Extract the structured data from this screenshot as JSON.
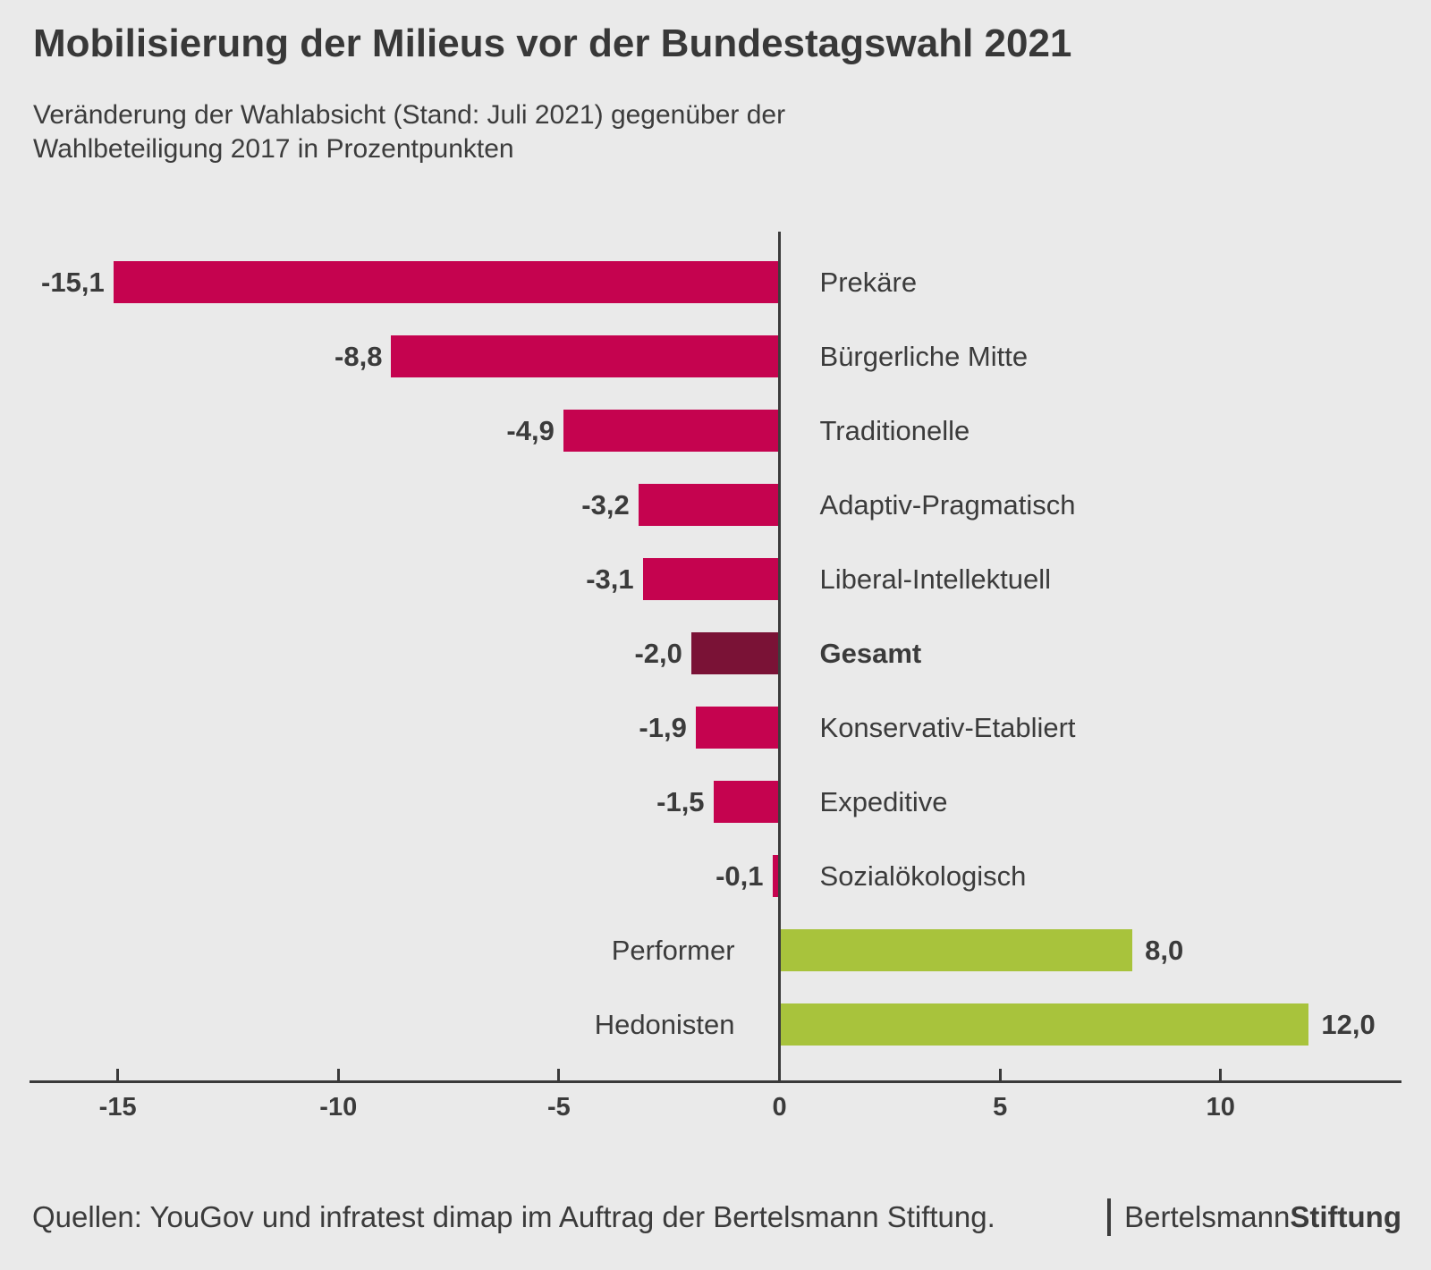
{
  "header": {
    "title": "Mobilisierung der Milieus vor der Bundestagswahl 2021",
    "subtitle_line1": "Veränderung der Wahlabsicht (Stand: Juli 2021) gegenüber der",
    "subtitle_line2": "Wahlbeteiligung 2017 in Prozentpunkten"
  },
  "chart_data": {
    "type": "bar",
    "orientation": "horizontal",
    "title": "Mobilisierung der Milieus vor der Bundestagswahl 2021",
    "subtitle": "Veränderung der Wahlabsicht (Stand: Juli 2021) gegenüber der Wahlbeteiligung 2017 in Prozentpunkten",
    "unit": "Prozentpunkte",
    "categories": [
      "Prekäre",
      "Bürgerliche Mitte",
      "Traditionelle",
      "Adaptiv-Pragmatisch",
      "Liberal-Intellektuell",
      "Gesamt",
      "Konservativ-Etabliert",
      "Expeditive",
      "Sozialökologisch",
      "Performer",
      "Hedonisten"
    ],
    "values": [
      -15.1,
      -8.8,
      -4.9,
      -3.2,
      -3.1,
      -2.0,
      -1.9,
      -1.5,
      -0.1,
      8.0,
      12.0
    ],
    "value_labels": [
      "-15,1",
      "-8,8",
      "-4,9",
      "-3,2",
      "-3,1",
      "-2,0",
      "-1,9",
      "-1,5",
      "-0,1",
      "8,0",
      "12,0"
    ],
    "bar_color_keys": [
      "negative",
      "negative",
      "negative",
      "negative",
      "negative",
      "total",
      "negative",
      "negative",
      "negative",
      "positive",
      "positive"
    ],
    "emphasized_category": "Gesamt",
    "palette": {
      "negative": "#c5034f",
      "total": "#7a1236",
      "positive": "#a8c33c"
    },
    "axis": {
      "min": -17,
      "max": 14.1,
      "ticks": [
        -15,
        -10,
        -5,
        0,
        5,
        10
      ],
      "tick_labels": [
        "-15",
        "-10",
        "-5",
        "0",
        "5",
        "10"
      ],
      "grid": false
    },
    "legend": "none"
  },
  "footer": {
    "source": "Quellen: YouGov und infratest dimap im Auftrag der Bertelsmann Stiftung.",
    "logo": {
      "brand": "Bertelsmann",
      "brand_bold": "Stiftung"
    }
  },
  "colors": {
    "background": "#eaeaea",
    "text": "#3b3b3b",
    "axis": "#3a3a3a"
  }
}
